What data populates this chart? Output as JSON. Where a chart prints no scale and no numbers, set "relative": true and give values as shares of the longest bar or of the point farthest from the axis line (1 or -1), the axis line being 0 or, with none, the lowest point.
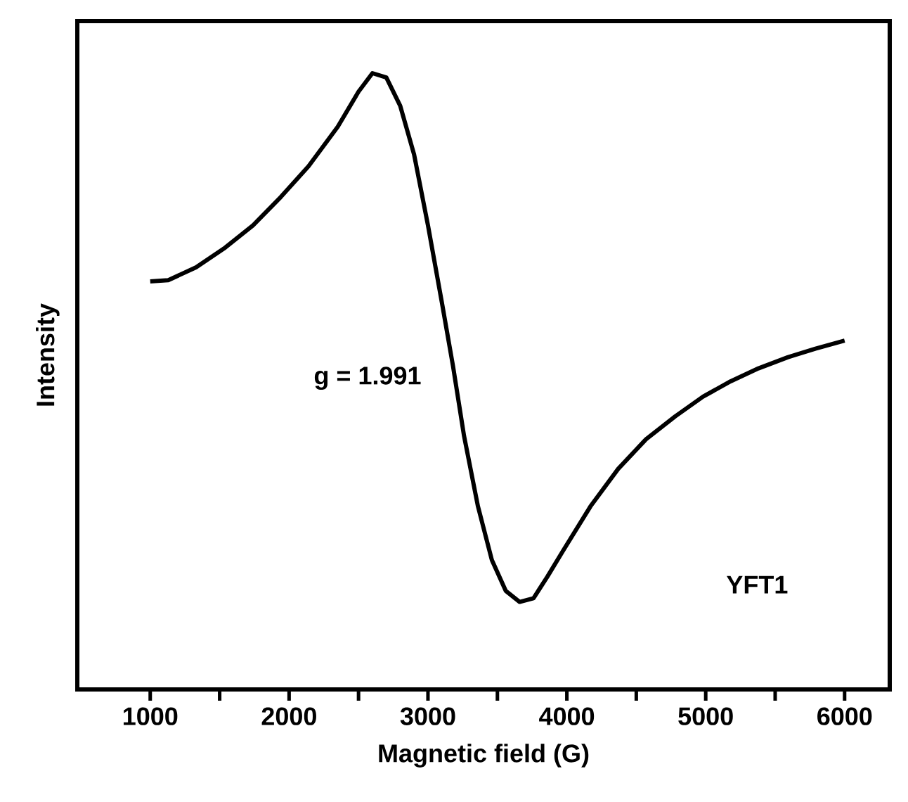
{
  "chart_data": {
    "type": "line",
    "xlabel": "Magnetic field (G)",
    "ylabel": "Intensity",
    "relative": true,
    "xlim": [
      475,
      6325
    ],
    "xticks": [
      1000,
      {
        "value": 1500,
        "label": null
      },
      2000,
      {
        "value": 2500,
        "label": null
      },
      3000,
      {
        "value": 3500,
        "label": null
      },
      4000,
      {
        "value": 4500,
        "label": null
      },
      5000,
      {
        "value": 5500,
        "label": null
      },
      6000
    ],
    "x": [
      1000,
      1130,
      1330,
      1540,
      1740,
      1940,
      2140,
      2350,
      2500,
      2600,
      2700,
      2800,
      2900,
      3000,
      3100,
      3180,
      3260,
      3360,
      3460,
      3560,
      3660,
      3760,
      3860,
      3970,
      4170,
      4370,
      4570,
      4780,
      4980,
      5180,
      5380,
      5590,
      5790,
      6000
    ],
    "series": [
      {
        "color": "#000000",
        "values": [
          0.662,
          0.664,
          0.685,
          0.717,
          0.753,
          0.799,
          0.849,
          0.913,
          0.97,
          1,
          0.993,
          0.947,
          0.868,
          0.753,
          0.628,
          0.525,
          0.411,
          0.297,
          0.21,
          0.16,
          0.142,
          0.148,
          0.183,
          0.224,
          0.297,
          0.358,
          0.406,
          0.443,
          0.475,
          0.5,
          0.521,
          0.539,
          0.553,
          0.566
        ]
      }
    ],
    "annotations": [
      "g = 1.991",
      "YFT1"
    ],
    "grid": false,
    "marker": "none",
    "line_style": "solid"
  }
}
